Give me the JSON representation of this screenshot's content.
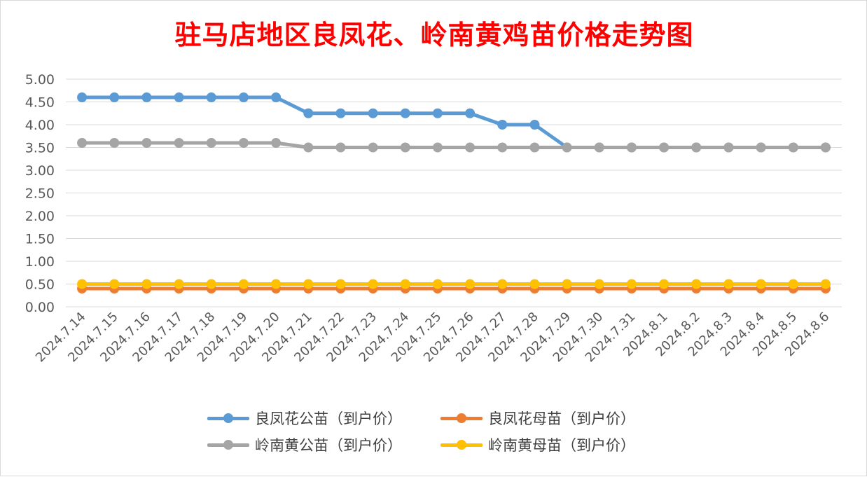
{
  "chart_data": {
    "type": "line",
    "title": "驻马店地区良凤花、岭南黄鸡苗价格走势图",
    "xlabel": "",
    "ylabel": "",
    "ylim": [
      0,
      5
    ],
    "y_ticks": [
      "0.00",
      "0.50",
      "1.00",
      "1.50",
      "2.00",
      "2.50",
      "3.00",
      "3.50",
      "4.00",
      "4.50",
      "5.00"
    ],
    "categories": [
      "2024.7.14",
      "2024.7.15",
      "2024.7.16",
      "2024.7.17",
      "2024.7.18",
      "2024.7.19",
      "2024.7.20",
      "2024.7.21",
      "2024.7.22",
      "2024.7.23",
      "2024.7.24",
      "2024.7.25",
      "2024.7.26",
      "2024.7.27",
      "2024.7.28",
      "2024.7.29",
      "2024.7.30",
      "2024.7.31",
      "2024.8.1",
      "2024.8.2",
      "2024.8.3",
      "2024.8.4",
      "2024.8.5",
      "2024.8.6"
    ],
    "grid": true,
    "legend_position": "bottom",
    "series": [
      {
        "name": "良凤花公苗（到户价）",
        "color": "#5b9bd5",
        "values": [
          4.6,
          4.6,
          4.6,
          4.6,
          4.6,
          4.6,
          4.6,
          4.25,
          4.25,
          4.25,
          4.25,
          4.25,
          4.25,
          4.0,
          4.0,
          3.5,
          3.5,
          3.5,
          3.5,
          3.5,
          3.5,
          3.5,
          3.5,
          3.5
        ]
      },
      {
        "name": "良凤花母苗（到户价）",
        "color": "#ed7d31",
        "values": [
          0.4,
          0.4,
          0.4,
          0.4,
          0.4,
          0.4,
          0.4,
          0.4,
          0.4,
          0.4,
          0.4,
          0.4,
          0.4,
          0.4,
          0.4,
          0.4,
          0.4,
          0.4,
          0.4,
          0.4,
          0.4,
          0.4,
          0.4,
          0.4
        ]
      },
      {
        "name": "岭南黄公苗（到户价）",
        "color": "#a5a5a5",
        "values": [
          3.6,
          3.6,
          3.6,
          3.6,
          3.6,
          3.6,
          3.6,
          3.5,
          3.5,
          3.5,
          3.5,
          3.5,
          3.5,
          3.5,
          3.5,
          3.5,
          3.5,
          3.5,
          3.5,
          3.5,
          3.5,
          3.5,
          3.5,
          3.5
        ]
      },
      {
        "name": "岭南黄母苗（到户价）",
        "color": "#ffc000",
        "values": [
          0.5,
          0.5,
          0.5,
          0.5,
          0.5,
          0.5,
          0.5,
          0.5,
          0.5,
          0.5,
          0.5,
          0.5,
          0.5,
          0.5,
          0.5,
          0.5,
          0.5,
          0.5,
          0.5,
          0.5,
          0.5,
          0.5,
          0.5,
          0.5
        ]
      }
    ]
  }
}
